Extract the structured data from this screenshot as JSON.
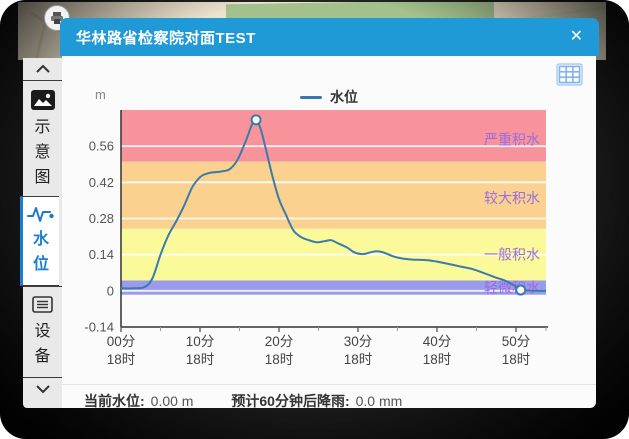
{
  "window": {
    "title": "华林路省检察院对面TEST",
    "close_label": "✕"
  },
  "theme": {
    "titlebar_blue": "#1F9AD6",
    "active_tab_blue": "#1B7FD0",
    "band_label_purple": "#9B6CE0",
    "series_blue": "#3A7BAD"
  },
  "sidebar": {
    "scroll_up_icon": "chevron-up-icon",
    "scroll_down_icon": "chevron-down-icon",
    "tabs": [
      {
        "id": "schematic",
        "label": "示意图",
        "label_chars": [
          "示",
          "意",
          "图"
        ],
        "icon": "image-icon",
        "active": false
      },
      {
        "id": "water-level",
        "label": "水位",
        "label_chars": [
          "水",
          "位"
        ],
        "icon": "waveform-icon",
        "active": true
      },
      {
        "id": "devices",
        "label": "设备",
        "label_chars": [
          "设",
          "备"
        ],
        "icon": "list-icon",
        "active": false
      }
    ]
  },
  "toolbar": {
    "table_icon": "table-grid-icon"
  },
  "status": {
    "current_label": "当前水位:",
    "current_value": "0.00 m",
    "forecast_label": "预计60分钟后降雨:",
    "forecast_value": "0.0 mm"
  },
  "chart_data": {
    "type": "line",
    "unit": "m",
    "legend_name": "水位",
    "legend_position": "top-center",
    "grid": true,
    "xlim": [
      0,
      53.8
    ],
    "ylim": [
      -0.14,
      0.7
    ],
    "y_ticks": [
      {
        "v": 0.56,
        "label": "0.56"
      },
      {
        "v": 0.42,
        "label": "0.42"
      },
      {
        "v": 0.28,
        "label": "0.28"
      },
      {
        "v": 0.14,
        "label": "0.14"
      },
      {
        "v": 0.0,
        "label": "0"
      },
      {
        "v": -0.14,
        "label": "-0.14"
      }
    ],
    "x_ticks": [
      {
        "t": 0,
        "minute": "00分",
        "hour": "18时"
      },
      {
        "t": 10,
        "minute": "10分",
        "hour": "18时"
      },
      {
        "t": 20,
        "minute": "20分",
        "hour": "18时"
      },
      {
        "t": 30,
        "minute": "30分",
        "hour": "18时"
      },
      {
        "t": 40,
        "minute": "40分",
        "hour": "18时"
      },
      {
        "t": 50,
        "minute": "50分",
        "hour": "18时"
      }
    ],
    "x_minor_ticks": [
      5,
      15,
      25,
      35,
      45,
      53.8
    ],
    "bands": [
      {
        "label": "严重积水",
        "from": 0.5,
        "to": 0.7,
        "color": "#F8939C",
        "label_v": 0.585
      },
      {
        "label": "较大积水",
        "from": 0.24,
        "to": 0.5,
        "color": "#FAD18F",
        "label_v": 0.36
      },
      {
        "label": "一般积水",
        "from": 0.04,
        "to": 0.24,
        "color": "#FAFA9B",
        "label_v": 0.14
      },
      {
        "label": "轻微积水",
        "from": -0.015,
        "to": 0.04,
        "color": "#9B9BEC",
        "label_v": 0.012
      }
    ],
    "band_label_color": "#9B6CE0",
    "gridline_values": [
      0.56,
      0.42,
      0.28,
      0.14,
      0
    ],
    "series": [
      {
        "name": "水位",
        "color": "#3A7BAD",
        "points": [
          [
            0,
            0.01
          ],
          [
            1.5,
            0.01
          ],
          [
            3,
            0.015
          ],
          [
            4,
            0.05
          ],
          [
            5,
            0.14
          ],
          [
            6,
            0.215
          ],
          [
            7,
            0.27
          ],
          [
            8,
            0.33
          ],
          [
            9,
            0.4
          ],
          [
            10,
            0.44
          ],
          [
            10.7,
            0.452
          ],
          [
            11.5,
            0.458
          ],
          [
            12.7,
            0.462
          ],
          [
            13.8,
            0.472
          ],
          [
            14.8,
            0.51
          ],
          [
            15.8,
            0.58
          ],
          [
            16.6,
            0.645
          ],
          [
            17.1,
            0.662
          ],
          [
            17.7,
            0.625
          ],
          [
            18.4,
            0.54
          ],
          [
            19.2,
            0.44
          ],
          [
            20,
            0.355
          ],
          [
            20.8,
            0.3
          ],
          [
            21.8,
            0.235
          ],
          [
            22.8,
            0.208
          ],
          [
            23.8,
            0.196
          ],
          [
            24.8,
            0.188
          ],
          [
            25.9,
            0.193
          ],
          [
            26.6,
            0.196
          ],
          [
            27.6,
            0.182
          ],
          [
            28.6,
            0.168
          ],
          [
            29.6,
            0.148
          ],
          [
            30.6,
            0.142
          ],
          [
            31.6,
            0.149
          ],
          [
            32.4,
            0.153
          ],
          [
            33.4,
            0.147
          ],
          [
            34.4,
            0.134
          ],
          [
            35.6,
            0.125
          ],
          [
            37,
            0.121
          ],
          [
            38.6,
            0.119
          ],
          [
            40,
            0.113
          ],
          [
            41.5,
            0.104
          ],
          [
            43,
            0.094
          ],
          [
            44.5,
            0.084
          ],
          [
            46,
            0.068
          ],
          [
            47.4,
            0.052
          ],
          [
            48.6,
            0.04
          ],
          [
            49.6,
            0.024
          ],
          [
            50.4,
            0.008
          ],
          [
            51.2,
            0.002
          ],
          [
            52,
            0
          ],
          [
            53.8,
            0
          ]
        ],
        "markers": [
          [
            17.1,
            0.662
          ],
          [
            50.6,
            0.003
          ]
        ]
      }
    ]
  }
}
